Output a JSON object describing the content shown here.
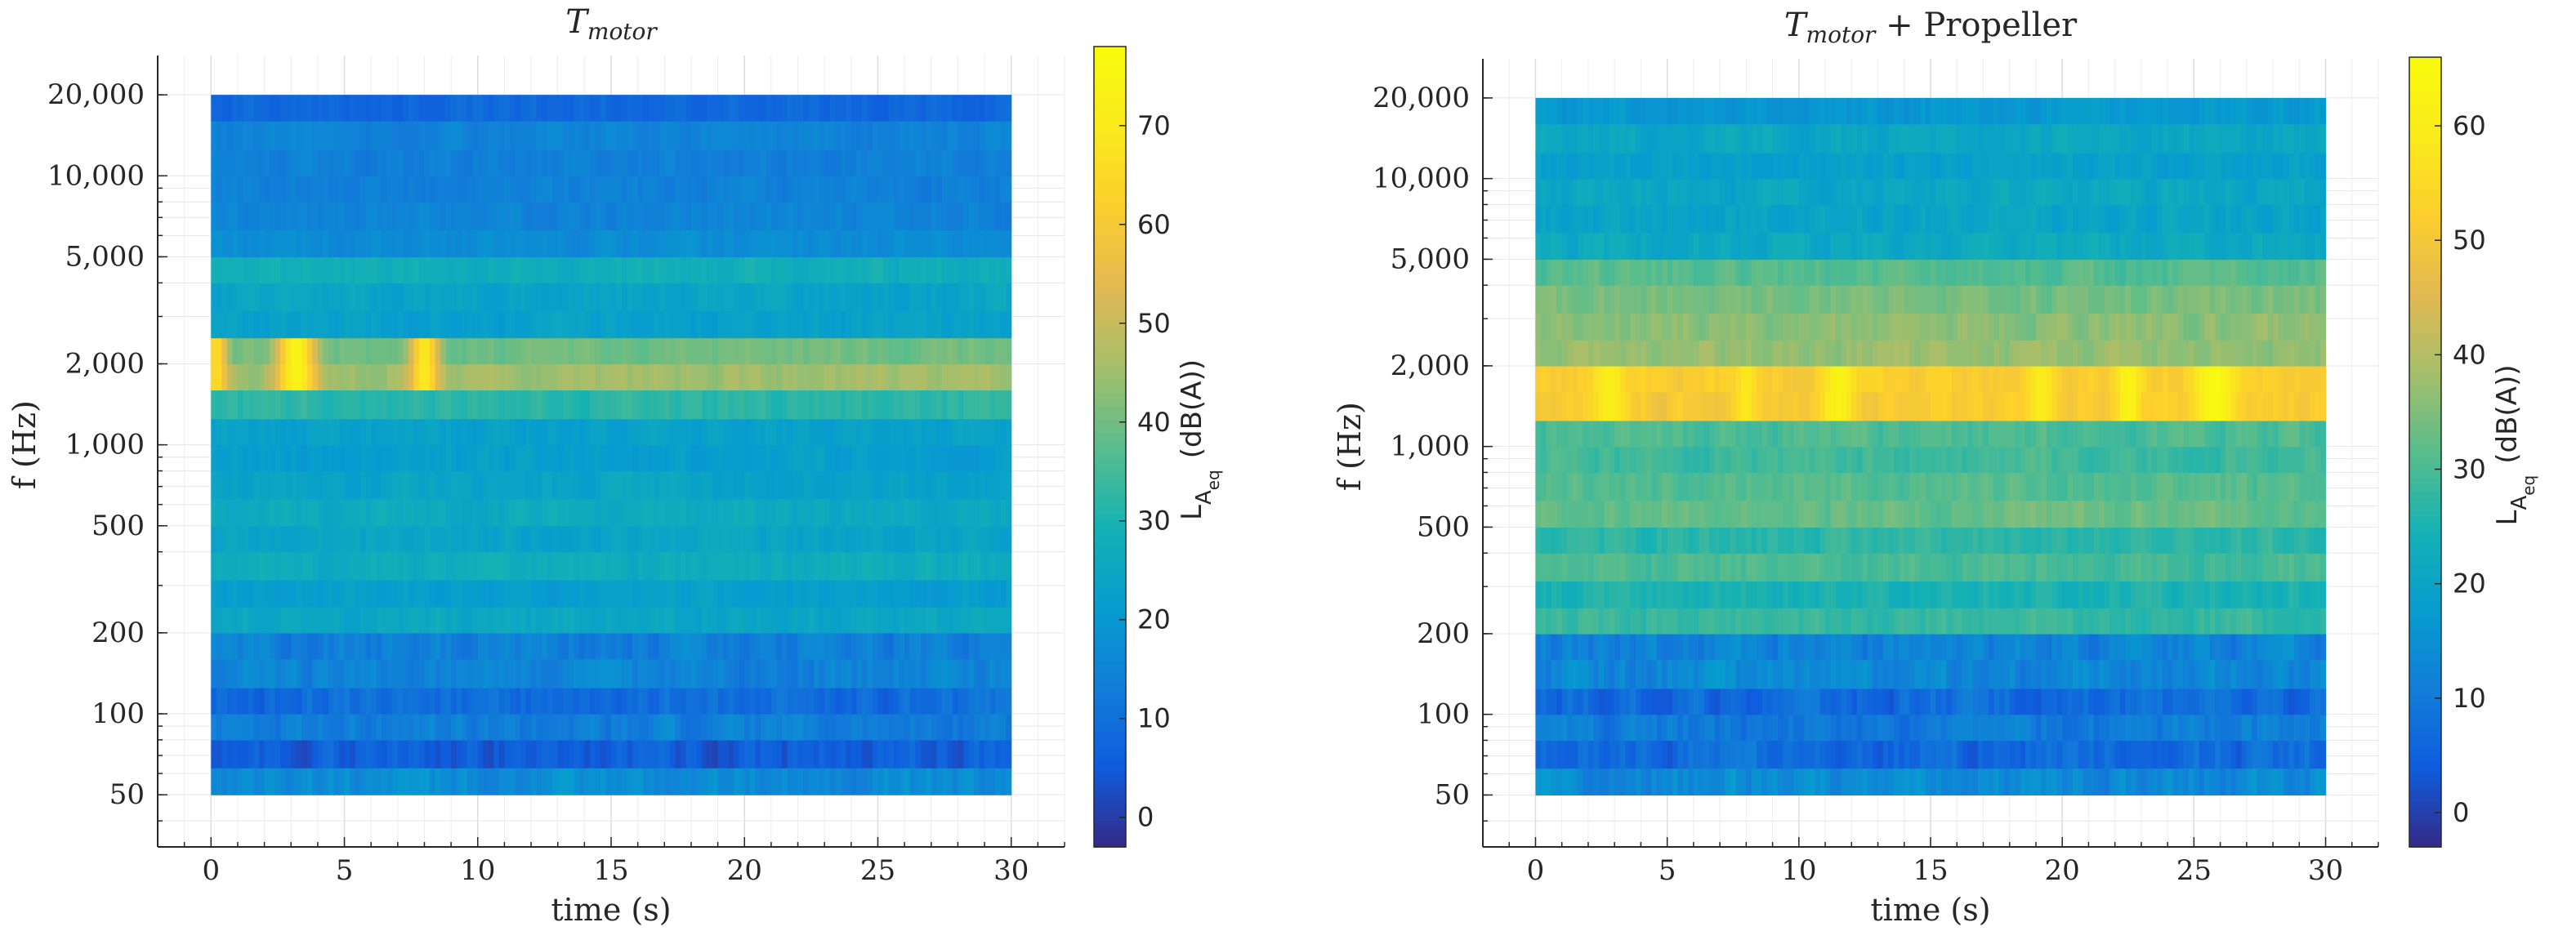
{
  "chart_data": [
    {
      "type": "heatmap",
      "title_main": "T",
      "title_sub": "motor",
      "title_suffix": "",
      "xlabel": "time (s)",
      "ylabel": "f  (Hz)",
      "xlim": [
        -2,
        32
      ],
      "x_ticks": [
        0,
        5,
        10,
        15,
        20,
        25,
        30
      ],
      "x_tick_labels": [
        "0",
        "5",
        "10",
        "15",
        "20",
        "25",
        "30"
      ],
      "y_scale": "log",
      "ylim": [
        32,
        28000
      ],
      "y_ticks": [
        50,
        100,
        200,
        500,
        1000,
        2000,
        5000,
        10000,
        20000
      ],
      "y_tick_labels": [
        "50",
        "100",
        "200",
        "500",
        "1,000",
        "2,000",
        "5,000",
        "10,000",
        "20,000"
      ],
      "colorbar": {
        "label": "L",
        "label_sub": "A",
        "label_subsub": "eq",
        "label_unit": "(dB(A))",
        "range": [
          -3,
          78
        ],
        "ticks": [
          0,
          10,
          20,
          30,
          40,
          50,
          60,
          70
        ],
        "tick_labels": [
          "0",
          "10",
          "20",
          "30",
          "40",
          "50",
          "60",
          "70"
        ]
      },
      "time_range": [
        0,
        30
      ],
      "n_time_bins": 150,
      "bands": [
        {
          "f_low": 50,
          "f_high": 63,
          "level": 17
        },
        {
          "f_low": 63,
          "f_high": 80,
          "level": 6
        },
        {
          "f_low": 80,
          "f_high": 100,
          "level": 13
        },
        {
          "f_low": 100,
          "f_high": 125,
          "level": 9
        },
        {
          "f_low": 125,
          "f_high": 160,
          "level": 15
        },
        {
          "f_low": 160,
          "f_high": 200,
          "level": 14
        },
        {
          "f_low": 200,
          "f_high": 250,
          "level": 25
        },
        {
          "f_low": 250,
          "f_high": 315,
          "level": 22
        },
        {
          "f_low": 315,
          "f_high": 400,
          "level": 27
        },
        {
          "f_low": 400,
          "f_high": 500,
          "level": 24
        },
        {
          "f_low": 500,
          "f_high": 630,
          "level": 26
        },
        {
          "f_low": 630,
          "f_high": 800,
          "level": 24
        },
        {
          "f_low": 800,
          "f_high": 1000,
          "level": 22
        },
        {
          "f_low": 1000,
          "f_high": 1250,
          "level": 23
        },
        {
          "f_low": 1250,
          "f_high": 1600,
          "level": 32
        },
        {
          "f_low": 1600,
          "f_high": 2000,
          "level": 45
        },
        {
          "f_low": 2000,
          "f_high": 2500,
          "level": 40
        },
        {
          "f_low": 2500,
          "f_high": 3150,
          "level": 23
        },
        {
          "f_low": 3150,
          "f_high": 4000,
          "level": 24
        },
        {
          "f_low": 4000,
          "f_high": 5000,
          "level": 28
        },
        {
          "f_low": 5000,
          "f_high": 6300,
          "level": 17
        },
        {
          "f_low": 6300,
          "f_high": 8000,
          "level": 15
        },
        {
          "f_low": 8000,
          "f_high": 10000,
          "level": 14
        },
        {
          "f_low": 10000,
          "f_high": 12500,
          "level": 14
        },
        {
          "f_low": 12500,
          "f_high": 16000,
          "level": 15
        },
        {
          "f_low": 16000,
          "f_high": 20000,
          "level": 8
        }
      ],
      "hotspots": [
        {
          "t": 3.2,
          "width": 0.7,
          "f_low": 1600,
          "f_high": 2500,
          "level": 74
        },
        {
          "t": 8.0,
          "width": 0.5,
          "f_low": 1600,
          "f_high": 2500,
          "level": 70
        },
        {
          "t": 0.2,
          "width": 0.4,
          "f_low": 1600,
          "f_high": 2500,
          "level": 66
        }
      ]
    },
    {
      "type": "heatmap",
      "title_main": "T",
      "title_sub": "motor",
      "title_suffix": " + Propeller",
      "xlabel": "time (s)",
      "ylabel": "f  (Hz)",
      "xlim": [
        -2,
        32
      ],
      "x_ticks": [
        0,
        5,
        10,
        15,
        20,
        25,
        30
      ],
      "x_tick_labels": [
        "0",
        "5",
        "10",
        "15",
        "20",
        "25",
        "30"
      ],
      "y_scale": "log",
      "ylim": [
        32,
        28000
      ],
      "y_ticks": [
        50,
        100,
        200,
        500,
        1000,
        2000,
        5000,
        10000,
        20000
      ],
      "y_tick_labels": [
        "50",
        "100",
        "200",
        "500",
        "1,000",
        "2,000",
        "5,000",
        "10,000",
        "20,000"
      ],
      "colorbar": {
        "label": "L",
        "label_sub": "A",
        "label_subsub": "eq",
        "label_unit": "(dB(A))",
        "range": [
          -3,
          66
        ],
        "ticks": [
          0,
          10,
          20,
          30,
          40,
          50,
          60
        ],
        "tick_labels": [
          "0",
          "10",
          "20",
          "30",
          "40",
          "50",
          "60"
        ]
      },
      "time_range": [
        0,
        30
      ],
      "n_time_bins": 150,
      "bands": [
        {
          "f_low": 50,
          "f_high": 63,
          "level": 14
        },
        {
          "f_low": 63,
          "f_high": 80,
          "level": 7
        },
        {
          "f_low": 80,
          "f_high": 100,
          "level": 10
        },
        {
          "f_low": 100,
          "f_high": 125,
          "level": 7
        },
        {
          "f_low": 125,
          "f_high": 160,
          "level": 13
        },
        {
          "f_low": 160,
          "f_high": 200,
          "level": 12
        },
        {
          "f_low": 200,
          "f_high": 250,
          "level": 28
        },
        {
          "f_low": 250,
          "f_high": 315,
          "level": 25
        },
        {
          "f_low": 315,
          "f_high": 400,
          "level": 30
        },
        {
          "f_low": 400,
          "f_high": 500,
          "level": 27
        },
        {
          "f_low": 500,
          "f_high": 630,
          "level": 33
        },
        {
          "f_low": 630,
          "f_high": 800,
          "level": 31
        },
        {
          "f_low": 800,
          "f_high": 1000,
          "level": 29
        },
        {
          "f_low": 1000,
          "f_high": 1250,
          "level": 30
        },
        {
          "f_low": 1250,
          "f_high": 1600,
          "level": 51
        },
        {
          "f_low": 1600,
          "f_high": 2000,
          "level": 52
        },
        {
          "f_low": 2000,
          "f_high": 2500,
          "level": 37
        },
        {
          "f_low": 2500,
          "f_high": 3150,
          "level": 36
        },
        {
          "f_low": 3150,
          "f_high": 4000,
          "level": 34
        },
        {
          "f_low": 4000,
          "f_high": 5000,
          "level": 31
        },
        {
          "f_low": 5000,
          "f_high": 6300,
          "level": 22
        },
        {
          "f_low": 6300,
          "f_high": 8000,
          "level": 20
        },
        {
          "f_low": 8000,
          "f_high": 10000,
          "level": 21
        },
        {
          "f_low": 10000,
          "f_high": 12500,
          "level": 19
        },
        {
          "f_low": 12500,
          "f_high": 16000,
          "level": 21
        },
        {
          "f_low": 16000,
          "f_high": 20000,
          "level": 17
        }
      ],
      "hotspots": [
        {
          "t": 2.8,
          "width": 0.6,
          "f_low": 1250,
          "f_high": 2000,
          "level": 61
        },
        {
          "t": 8.0,
          "width": 0.4,
          "f_low": 1250,
          "f_high": 2000,
          "level": 59
        },
        {
          "t": 11.5,
          "width": 0.6,
          "f_low": 1250,
          "f_high": 2000,
          "level": 62
        },
        {
          "t": 19.2,
          "width": 0.5,
          "f_low": 1250,
          "f_high": 2000,
          "level": 60
        },
        {
          "t": 22.5,
          "width": 0.5,
          "f_low": 1250,
          "f_high": 2000,
          "level": 63
        },
        {
          "t": 25.8,
          "width": 0.8,
          "f_low": 1250,
          "f_high": 2000,
          "level": 65
        }
      ]
    }
  ]
}
